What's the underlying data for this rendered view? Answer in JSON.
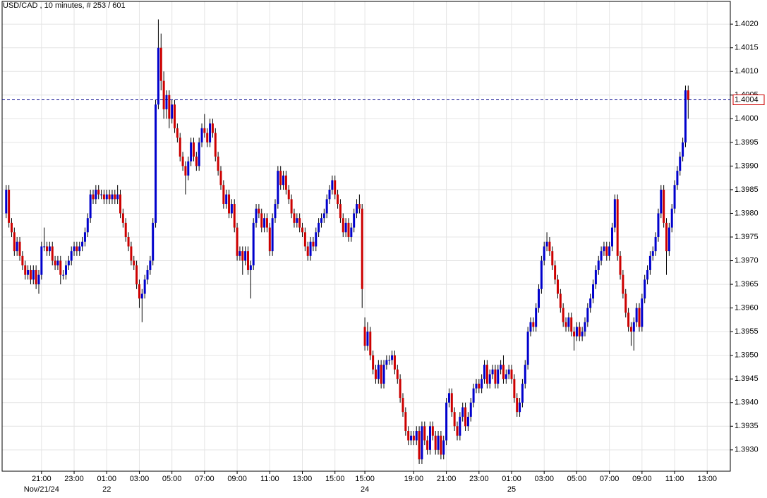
{
  "chart_data": {
    "type": "candlestick",
    "title": "USD/CAD , 10 minutes, # 253 / 601",
    "up_color": "#0000cc",
    "down_color": "#cc0000",
    "grid": true,
    "last_price": 1.4004,
    "ylim": [
      1.39255,
      1.40248
    ],
    "yticks": [
      {
        "value": 1.402,
        "label": "1.4020"
      },
      1.4015,
      {
        "value": 1.401,
        "label": "1.4010"
      },
      1.4005,
      {
        "value": 1.4,
        "label": "1.4000"
      },
      1.3995,
      {
        "value": 1.399,
        "label": "1.3990"
      },
      1.3985,
      {
        "value": 1.398,
        "label": "1.3980"
      },
      1.3975,
      {
        "value": 1.397,
        "label": "1.3970"
      },
      1.3965,
      {
        "value": 1.396,
        "label": "1.3960"
      },
      1.3955,
      {
        "value": 1.395,
        "label": "1.3950"
      },
      1.3945,
      {
        "value": 1.394,
        "label": "1.3940"
      },
      1.3935,
      {
        "value": 1.393,
        "label": "1.3930"
      }
    ],
    "xlim": [
      -1.5,
      266.5
    ],
    "xticks": [
      {
        "value": 13,
        "label": "21:00"
      },
      {
        "value": 25,
        "label": "23:00"
      },
      {
        "value": 37,
        "label": "01:00"
      },
      {
        "value": 49,
        "label": "03:00"
      },
      {
        "value": 61,
        "label": "05:00"
      },
      {
        "value": 73,
        "label": "07:00"
      },
      {
        "value": 85,
        "label": "09:00"
      },
      {
        "value": 97,
        "label": "11:00"
      },
      {
        "value": 109,
        "label": "13:00"
      },
      {
        "value": 121,
        "label": "15:00"
      },
      {
        "value": 132,
        "label": "15:00"
      },
      {
        "value": 150,
        "label": "19:00"
      },
      {
        "value": 162,
        "label": "21:00"
      },
      {
        "value": 174,
        "label": "23:00"
      },
      {
        "value": 186,
        "label": "01:00"
      },
      {
        "value": 198,
        "label": "03:00"
      },
      {
        "value": 210,
        "label": "05:00"
      },
      {
        "value": 222,
        "label": "07:00"
      },
      {
        "value": 234,
        "label": "09:00"
      },
      {
        "value": 246,
        "label": "11:00"
      },
      {
        "value": 258,
        "label": "13:00"
      }
    ],
    "date_labels": [
      {
        "value": 13,
        "label": "Nov/21/24"
      },
      {
        "value": 37,
        "label": "22"
      },
      {
        "value": 132,
        "label": "24"
      },
      {
        "value": 186,
        "label": "25"
      }
    ],
    "open": [
      1.398,
      1.3985,
      1.3978,
      1.3976,
      1.3972,
      1.3974,
      1.3971,
      1.3969,
      1.3967,
      1.3968,
      1.3966,
      1.3968,
      1.3965,
      1.3967,
      1.3973,
      1.3973,
      1.3972,
      1.3973,
      1.397,
      1.3969,
      1.397,
      1.3967,
      1.3967,
      1.3969,
      1.397,
      1.3972,
      1.3973,
      1.3972,
      1.3973,
      1.3974,
      1.3976,
      1.3979,
      1.3984,
      1.3983,
      1.3985,
      1.3984,
      1.3984,
      1.3983,
      1.3984,
      1.3983,
      1.3984,
      1.3983,
      1.3984,
      1.398,
      1.3978,
      1.3975,
      1.3973,
      1.397,
      1.3969,
      1.3965,
      1.3962,
      1.3963,
      1.3966,
      1.3968,
      1.397,
      1.3978,
      1.4003,
      1.4015,
      1.4008,
      1.4002,
      1.4005,
      1.4,
      1.4003,
      1.3998,
      1.3996,
      1.3992,
      1.399,
      1.3988,
      1.3991,
      1.3995,
      1.3992,
      1.399,
      1.3995,
      1.3998,
      1.3997,
      1.3995,
      1.3999,
      1.3997,
      1.3992,
      1.3989,
      1.3986,
      1.3982,
      1.3984,
      1.398,
      1.3982,
      1.3977,
      1.3971,
      1.3972,
      1.397,
      1.3972,
      1.3968,
      1.3969,
      1.3978,
      1.3981,
      1.398,
      1.3977,
      1.3979,
      1.3977,
      1.3972,
      1.3979,
      1.3982,
      1.3989,
      1.3986,
      1.3988,
      1.3985,
      1.3983,
      1.398,
      1.3978,
      1.3979,
      1.3977,
      1.3976,
      1.3973,
      1.3971,
      1.3974,
      1.3973,
      1.3976,
      1.3978,
      1.3979,
      1.398,
      1.3983,
      1.3985,
      1.3987,
      1.3984,
      1.3982,
      1.3979,
      1.3976,
      1.3978,
      1.3975,
      1.3977,
      1.398,
      1.3982,
      1.3981,
      1.3956,
      1.3952,
      1.3955,
      1.395,
      1.3947,
      1.3945,
      1.3948,
      1.3944,
      1.3948,
      1.3949,
      1.3949,
      1.395,
      1.3947,
      1.3945,
      1.3941,
      1.3938,
      1.3934,
      1.3932,
      1.3933,
      1.3932,
      1.3934,
      1.3928,
      1.3935,
      1.3932,
      1.393,
      1.3935,
      1.3933,
      1.393,
      1.3933,
      1.3929,
      1.3932,
      1.394,
      1.3942,
      1.3938,
      1.3935,
      1.3933,
      1.3937,
      1.3939,
      1.3935,
      1.3937,
      1.394,
      1.3943,
      1.3944,
      1.3943,
      1.3945,
      1.3948,
      1.3944,
      1.3946,
      1.3947,
      1.3944,
      1.3947,
      1.3948,
      1.3945,
      1.3946,
      1.3947,
      1.3945,
      1.3941,
      1.3938,
      1.394,
      1.3944,
      1.3948,
      1.3955,
      1.3957,
      1.3956,
      1.396,
      1.3964,
      1.397,
      1.3973,
      1.3974,
      1.3972,
      1.3969,
      1.3966,
      1.3963,
      1.396,
      1.3957,
      1.3956,
      1.3958,
      1.3955,
      1.3954,
      1.3956,
      1.3954,
      1.3955,
      1.3957,
      1.396,
      1.3962,
      1.3965,
      1.3968,
      1.397,
      1.3972,
      1.3973,
      1.3971,
      1.3973,
      1.3977,
      1.3983,
      1.3971,
      1.3967,
      1.3963,
      1.3959,
      1.3956,
      1.3955,
      1.3957,
      1.396,
      1.3956,
      1.3962,
      1.3966,
      1.3968,
      1.3971,
      1.3972,
      1.3975,
      1.398,
      1.3985,
      1.3978,
      1.3972,
      1.3977,
      1.3981,
      1.3986,
      1.3989,
      1.3992,
      1.3995,
      1.4006
    ],
    "high": [
      1.3986,
      1.3986,
      1.3979,
      1.3977,
      1.3975,
      1.3975,
      1.3972,
      1.397,
      1.3969,
      1.3969,
      1.3969,
      1.3969,
      1.3968,
      1.3974,
      1.3977,
      1.3974,
      1.3974,
      1.3974,
      1.3971,
      1.3971,
      1.3971,
      1.3968,
      1.397,
      1.3971,
      1.3973,
      1.3974,
      1.3974,
      1.3974,
      1.3975,
      1.3977,
      1.398,
      1.3985,
      1.3985,
      1.3986,
      1.3986,
      1.3985,
      1.3985,
      1.3985,
      1.3985,
      1.3985,
      1.3985,
      1.3986,
      1.3985,
      1.3981,
      1.3979,
      1.3976,
      1.3974,
      1.3971,
      1.397,
      1.3966,
      1.3964,
      1.3967,
      1.3969,
      1.3971,
      1.3979,
      1.4004,
      1.4021,
      1.4018,
      1.401,
      1.4006,
      1.4006,
      1.4004,
      1.4004,
      1.3999,
      1.3997,
      1.3993,
      1.3991,
      1.3992,
      1.3996,
      1.3996,
      1.3993,
      1.3996,
      1.3999,
      1.4001,
      1.3998,
      1.4,
      1.4,
      1.3998,
      1.3993,
      1.399,
      1.3987,
      1.3985,
      1.3985,
      1.3983,
      1.3983,
      1.3978,
      1.3973,
      1.3973,
      1.3973,
      1.3973,
      1.397,
      1.3979,
      1.3982,
      1.3982,
      1.3981,
      1.398,
      1.398,
      1.3978,
      1.398,
      1.3983,
      1.399,
      1.399,
      1.3989,
      1.3989,
      1.3986,
      1.3984,
      1.3981,
      1.398,
      1.398,
      1.3978,
      1.3977,
      1.3974,
      1.3975,
      1.3975,
      1.3977,
      1.3979,
      1.398,
      1.3981,
      1.3984,
      1.3986,
      1.3988,
      1.3988,
      1.3985,
      1.3983,
      1.398,
      1.3979,
      1.3979,
      1.3978,
      1.3981,
      1.3983,
      1.3984,
      1.3982,
      1.3958,
      1.3957,
      1.3956,
      1.3951,
      1.3948,
      1.3949,
      1.3949,
      1.3949,
      1.395,
      1.395,
      1.3951,
      1.3951,
      1.3948,
      1.3946,
      1.3942,
      1.3939,
      1.3935,
      1.3934,
      1.3934,
      1.3935,
      1.3935,
      1.3936,
      1.3936,
      1.3933,
      1.3936,
      1.3936,
      1.3934,
      1.3934,
      1.3934,
      1.3933,
      1.3941,
      1.3943,
      1.3943,
      1.3939,
      1.3936,
      1.3938,
      1.394,
      1.394,
      1.3938,
      1.3941,
      1.3944,
      1.3945,
      1.3945,
      1.3946,
      1.3949,
      1.3949,
      1.3947,
      1.3948,
      1.3948,
      1.3948,
      1.3949,
      1.395,
      1.3947,
      1.3948,
      1.3948,
      1.3946,
      1.3942,
      1.3941,
      1.3945,
      1.3949,
      1.3956,
      1.3958,
      1.3958,
      1.3961,
      1.3965,
      1.3971,
      1.3974,
      1.3976,
      1.3975,
      1.3973,
      1.397,
      1.3967,
      1.3964,
      1.3961,
      1.3958,
      1.3959,
      1.3959,
      1.3956,
      1.3957,
      1.3957,
      1.3956,
      1.3958,
      1.3961,
      1.3963,
      1.3966,
      1.3969,
      1.3971,
      1.3973,
      1.3974,
      1.3974,
      1.3974,
      1.3978,
      1.3984,
      1.3984,
      1.3972,
      1.3968,
      1.3964,
      1.396,
      1.3957,
      1.3958,
      1.3961,
      1.3961,
      1.3963,
      1.3967,
      1.3969,
      1.3972,
      1.3973,
      1.3976,
      1.3981,
      1.3986,
      1.3986,
      1.3979,
      1.3978,
      1.3982,
      1.3987,
      1.399,
      1.3993,
      1.3996,
      1.4007,
      1.4007
    ],
    "low": [
      1.3979,
      1.3977,
      1.3975,
      1.3971,
      1.3971,
      1.397,
      1.3968,
      1.3966,
      1.3966,
      1.3965,
      1.3965,
      1.3964,
      1.3963,
      1.3966,
      1.3972,
      1.3971,
      1.3971,
      1.3969,
      1.3968,
      1.3968,
      1.3965,
      1.3966,
      1.3966,
      1.3968,
      1.3969,
      1.3971,
      1.3971,
      1.3971,
      1.3972,
      1.3973,
      1.3975,
      1.3978,
      1.3982,
      1.3982,
      1.3983,
      1.3983,
      1.3982,
      1.3982,
      1.3982,
      1.3982,
      1.3982,
      1.3982,
      1.3979,
      1.3977,
      1.3974,
      1.3972,
      1.3969,
      1.3968,
      1.3964,
      1.396,
      1.3957,
      1.3962,
      1.3965,
      1.3967,
      1.3969,
      1.3977,
      1.4002,
      1.4006,
      1.4,
      1.4,
      1.3998,
      1.3999,
      1.3997,
      1.3995,
      1.3991,
      1.3989,
      1.3984,
      1.3987,
      1.399,
      1.3991,
      1.3989,
      1.3989,
      1.3994,
      1.3996,
      1.3994,
      1.3994,
      1.3996,
      1.3991,
      1.3988,
      1.3985,
      1.3981,
      1.3981,
      1.3979,
      1.3979,
      1.3976,
      1.397,
      1.397,
      1.3967,
      1.3969,
      1.3967,
      1.3962,
      1.3968,
      1.3977,
      1.3979,
      1.3976,
      1.3976,
      1.3976,
      1.3971,
      1.3971,
      1.3978,
      1.3981,
      1.3985,
      1.3985,
      1.3984,
      1.3982,
      1.3979,
      1.3977,
      1.3977,
      1.3976,
      1.3975,
      1.3972,
      1.397,
      1.397,
      1.3972,
      1.3972,
      1.3975,
      1.3977,
      1.3978,
      1.3979,
      1.3982,
      1.3984,
      1.3983,
      1.3981,
      1.3978,
      1.3975,
      1.3975,
      1.3974,
      1.3974,
      1.3976,
      1.3979,
      1.398,
      1.396,
      1.3951,
      1.3951,
      1.3949,
      1.3946,
      1.3944,
      1.3944,
      1.3943,
      1.3943,
      1.3947,
      1.3948,
      1.3948,
      1.3946,
      1.3944,
      1.394,
      1.3937,
      1.3933,
      1.3931,
      1.3931,
      1.3931,
      1.3931,
      1.3927,
      1.3927,
      1.3931,
      1.3929,
      1.3929,
      1.3932,
      1.3929,
      1.3929,
      1.3928,
      1.3928,
      1.3931,
      1.3939,
      1.3937,
      1.3934,
      1.3932,
      1.3932,
      1.3936,
      1.3934,
      1.3934,
      1.3936,
      1.3939,
      1.3942,
      1.3942,
      1.3942,
      1.3944,
      1.3943,
      1.3943,
      1.3945,
      1.3943,
      1.3943,
      1.3946,
      1.3944,
      1.3944,
      1.3945,
      1.3944,
      1.394,
      1.3937,
      1.3937,
      1.3939,
      1.3943,
      1.3947,
      1.3954,
      1.3955,
      1.3955,
      1.3959,
      1.3963,
      1.3969,
      1.3972,
      1.3971,
      1.3968,
      1.3965,
      1.3962,
      1.3959,
      1.3956,
      1.3955,
      1.3955,
      1.3954,
      1.3951,
      1.3953,
      1.3953,
      1.3953,
      1.3954,
      1.3956,
      1.3959,
      1.3961,
      1.3964,
      1.3967,
      1.3969,
      1.3971,
      1.397,
      1.397,
      1.3972,
      1.3976,
      1.397,
      1.3966,
      1.3962,
      1.3958,
      1.3955,
      1.3952,
      1.3951,
      1.3956,
      1.3955,
      1.3955,
      1.3961,
      1.3965,
      1.3967,
      1.397,
      1.3971,
      1.3974,
      1.3979,
      1.3977,
      1.3967,
      1.3971,
      1.3976,
      1.398,
      1.3985,
      1.3988,
      1.3991,
      1.3994,
      1.4
    ],
    "close": [
      1.3985,
      1.3978,
      1.3976,
      1.3972,
      1.3974,
      1.3971,
      1.3969,
      1.3967,
      1.3968,
      1.3966,
      1.3968,
      1.3965,
      1.3967,
      1.3973,
      1.3973,
      1.3972,
      1.3973,
      1.397,
      1.3969,
      1.397,
      1.3967,
      1.3967,
      1.3969,
      1.397,
      1.3972,
      1.3973,
      1.3972,
      1.3973,
      1.3974,
      1.3976,
      1.3979,
      1.3984,
      1.3983,
      1.3985,
      1.3984,
      1.3984,
      1.3983,
      1.3984,
      1.3983,
      1.3984,
      1.3983,
      1.3984,
      1.398,
      1.3978,
      1.3975,
      1.3973,
      1.397,
      1.3969,
      1.3965,
      1.3962,
      1.3963,
      1.3966,
      1.3968,
      1.397,
      1.3978,
      1.4003,
      1.4015,
      1.4008,
      1.4002,
      1.4005,
      1.4,
      1.4003,
      1.3998,
      1.3996,
      1.3992,
      1.399,
      1.3988,
      1.3991,
      1.3995,
      1.3992,
      1.399,
      1.3995,
      1.3998,
      1.3997,
      1.3995,
      1.3999,
      1.3997,
      1.3992,
      1.3989,
      1.3986,
      1.3982,
      1.3984,
      1.398,
      1.3982,
      1.3977,
      1.3971,
      1.3972,
      1.397,
      1.3972,
      1.3968,
      1.3969,
      1.3978,
      1.3981,
      1.398,
      1.3977,
      1.3979,
      1.3977,
      1.3972,
      1.3979,
      1.3982,
      1.3989,
      1.3986,
      1.3988,
      1.3985,
      1.3983,
      1.398,
      1.3978,
      1.3979,
      1.3977,
      1.3976,
      1.3973,
      1.3971,
      1.3974,
      1.3973,
      1.3976,
      1.3978,
      1.3979,
      1.398,
      1.3983,
      1.3985,
      1.3987,
      1.3984,
      1.3982,
      1.3979,
      1.3976,
      1.3978,
      1.3975,
      1.3977,
      1.398,
      1.3982,
      1.3981,
      1.3964,
      1.3952,
      1.3955,
      1.395,
      1.3947,
      1.3945,
      1.3948,
      1.3944,
      1.3948,
      1.3949,
      1.3949,
      1.395,
      1.3947,
      1.3945,
      1.3941,
      1.3938,
      1.3934,
      1.3932,
      1.3933,
      1.3932,
      1.3934,
      1.3928,
      1.3935,
      1.3932,
      1.393,
      1.3935,
      1.3933,
      1.393,
      1.3933,
      1.3929,
      1.3932,
      1.394,
      1.3942,
      1.3938,
      1.3935,
      1.3933,
      1.3937,
      1.3939,
      1.3935,
      1.3937,
      1.394,
      1.3943,
      1.3944,
      1.3943,
      1.3945,
      1.3948,
      1.3944,
      1.3946,
      1.3947,
      1.3944,
      1.3947,
      1.3948,
      1.3945,
      1.3946,
      1.3947,
      1.3945,
      1.3941,
      1.3938,
      1.394,
      1.3944,
      1.3948,
      1.3955,
      1.3957,
      1.3956,
      1.396,
      1.3964,
      1.397,
      1.3973,
      1.3974,
      1.3972,
      1.3969,
      1.3966,
      1.3963,
      1.396,
      1.3957,
      1.3956,
      1.3958,
      1.3955,
      1.3954,
      1.3956,
      1.3954,
      1.3955,
      1.3957,
      1.396,
      1.3962,
      1.3965,
      1.3968,
      1.397,
      1.3972,
      1.3973,
      1.3971,
      1.3973,
      1.3977,
      1.3983,
      1.3971,
      1.3967,
      1.3963,
      1.3959,
      1.3956,
      1.3955,
      1.3957,
      1.396,
      1.3956,
      1.3962,
      1.3966,
      1.3968,
      1.3971,
      1.3972,
      1.3975,
      1.398,
      1.3985,
      1.3978,
      1.3972,
      1.3977,
      1.3981,
      1.3986,
      1.3989,
      1.3992,
      1.3995,
      1.4006,
      1.4004
    ]
  }
}
